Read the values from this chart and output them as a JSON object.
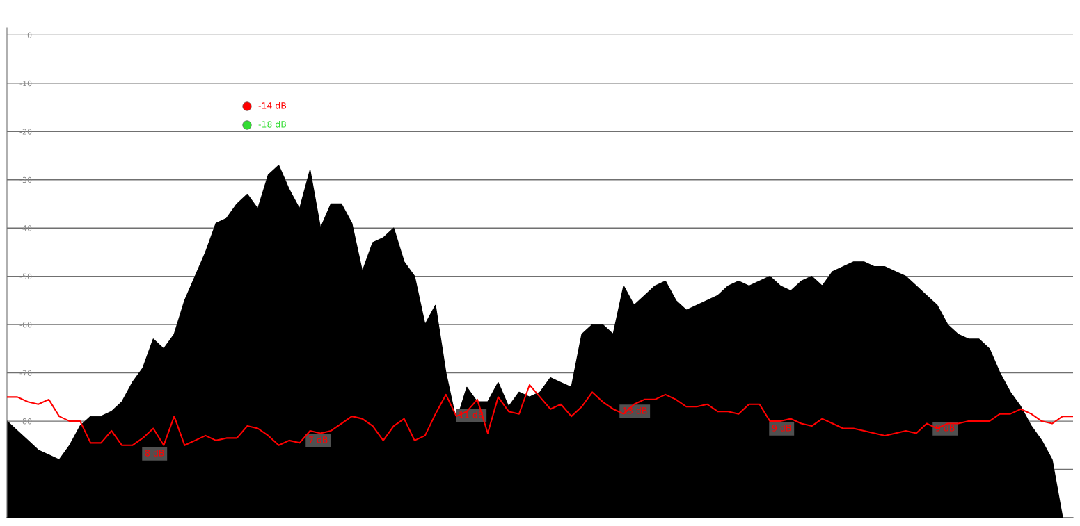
{
  "chart_data": {
    "type": "area",
    "ylim": [
      -100,
      1.5
    ],
    "grid": "y",
    "categories": [
      null,
      null,
      null,
      null,
      null,
      null,
      null,
      null,
      null,
      null,
      null,
      null,
      null,
      null,
      null,
      null,
      null,
      null,
      null,
      null,
      null,
      null,
      null,
      null,
      null,
      null,
      null,
      null,
      null,
      null,
      null,
      null,
      null,
      null,
      null,
      null,
      null,
      null,
      null,
      null,
      null,
      null,
      null,
      null,
      null,
      null,
      null,
      null,
      null,
      null,
      null,
      null,
      null,
      null,
      null,
      null,
      null,
      null,
      null,
      null,
      null,
      null,
      null,
      null,
      null,
      null,
      null,
      null,
      null,
      null,
      null,
      null,
      null,
      null,
      null,
      null,
      null,
      null,
      null,
      null,
      null,
      null,
      null,
      null,
      null,
      null,
      null,
      null,
      null,
      null,
      null,
      null,
      null,
      null,
      null,
      null,
      null,
      null,
      null,
      null,
      null,
      null,
      null
    ],
    "yticks": [
      0,
      -10,
      -20,
      -30,
      -40,
      -50,
      -60,
      -70,
      -80,
      {
        "value": -90,
        "label": null
      }
    ],
    "series": [
      {
        "color": "#000000",
        "values": [
          -80,
          -82,
          -84,
          -86,
          -87,
          -88,
          -85,
          -81,
          -79,
          -79,
          -78,
          -76,
          -72,
          -69,
          -63,
          -65,
          -62,
          -55,
          -50,
          -45,
          -39,
          -38,
          -35,
          -33,
          -36,
          -29,
          -27,
          -32,
          -36,
          -28,
          -40,
          -35,
          -35,
          -39,
          -49,
          -43,
          -42,
          -40,
          -47,
          -50,
          -60,
          -56,
          -70,
          -80,
          -73,
          -76,
          -76,
          -72,
          -77,
          -74,
          -75,
          -74,
          -71,
          -72,
          -73,
          -62,
          -60,
          -60,
          -62,
          -52,
          -56,
          -54,
          -52,
          -51,
          -55,
          -57,
          -56,
          -55,
          -54,
          -52,
          -51,
          -52,
          -51,
          -50,
          -52,
          -53,
          -51,
          -50,
          -52,
          -49,
          -48,
          -47,
          -47,
          -48,
          -48,
          -49,
          -50,
          -52,
          -54,
          -56,
          -60,
          -62,
          -63,
          -63,
          -65,
          -70,
          -74,
          -77,
          -81,
          -84,
          -88,
          -100,
          null
        ]
      },
      {
        "type": "line",
        "color": "#ff0000",
        "values": [
          -75,
          -75,
          -76,
          -76.5,
          -75.5,
          -79,
          -80,
          -80,
          -84.5,
          -84.5,
          -82,
          -85,
          -85,
          -83.5,
          -81.5,
          -85,
          -79,
          -85,
          -84,
          -83,
          -84,
          -83.5,
          -83.5,
          -81,
          -81.5,
          -83,
          -85,
          -84,
          -84.5,
          -82,
          -82.5,
          -82,
          -80.5,
          -79,
          -79.5,
          -81,
          -84,
          -81,
          -79.5,
          -84,
          -83,
          -78.5,
          -74.5,
          -79,
          -78,
          -75.5,
          -82.5,
          -75,
          -78,
          -78.5,
          -72.5,
          -75,
          -77.5,
          -76.5,
          -79,
          -77,
          -74,
          -76,
          -77.5,
          -78.5,
          -76.5,
          -75.5,
          -75.5,
          -74.5,
          -75.5,
          -77,
          -77,
          -76.5,
          -78,
          -78,
          -78.5,
          -76.5,
          -76.5,
          -80,
          -80,
          -79.5,
          -80.5,
          -81,
          -79.5,
          -80.5,
          -81.5,
          -81.5,
          -82,
          -82.5,
          -83,
          -82.5,
          -82,
          -82.5,
          -80.5,
          -81.5,
          -80.5,
          -80.5,
          -80,
          -80,
          -80,
          -78.5,
          -78.5,
          -77.5,
          -78.5,
          -80,
          -80.5,
          -79,
          -79
        ]
      }
    ],
    "annotations": [
      "-14 dB",
      "-18 dB",
      "8 dB",
      "7 dB",
      "11 dB",
      "13 dB",
      "9 dB",
      "9 dB"
    ]
  }
}
